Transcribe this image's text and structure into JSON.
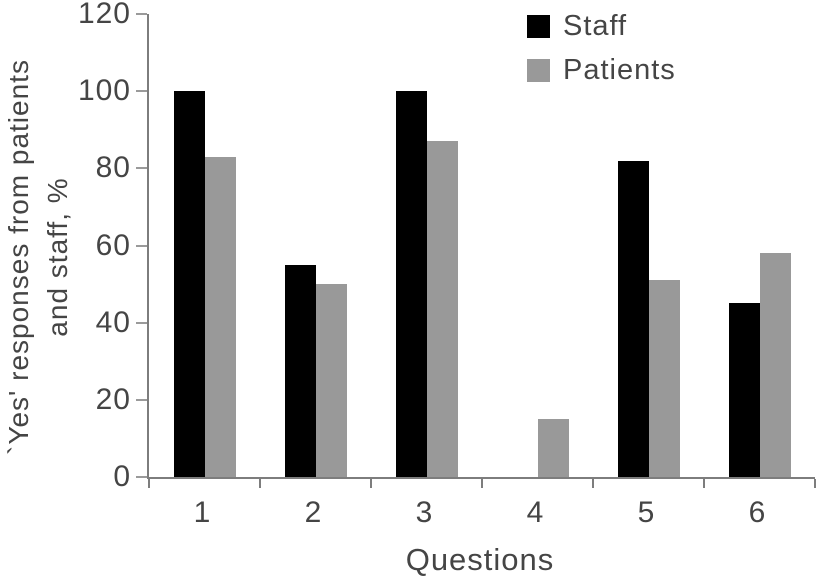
{
  "figure": {
    "background": "#ffffff",
    "axis_color": "#7d7d7d",
    "tick_color": "#9a9a9a",
    "text_color": "#454545"
  },
  "chart_data": {
    "type": "bar",
    "title": "",
    "xlabel": "Questions",
    "ylabel": "`Yes' responses from patients and staff, %",
    "ylabel_lines": [
      "`Yes' responses from patients",
      "and staff, %"
    ],
    "categories": [
      "1",
      "2",
      "3",
      "4",
      "5",
      "6"
    ],
    "series": [
      {
        "name": "Staff",
        "color": "#000000",
        "values": [
          100,
          55,
          100,
          0,
          82,
          45
        ]
      },
      {
        "name": "Patients",
        "color": "#999999",
        "values": [
          83,
          50,
          87,
          15,
          51,
          58
        ]
      }
    ],
    "ylim": [
      0,
      120
    ],
    "yticks": [
      0,
      20,
      40,
      60,
      80,
      100,
      120
    ],
    "grid": false,
    "legend_position": "top-right"
  }
}
